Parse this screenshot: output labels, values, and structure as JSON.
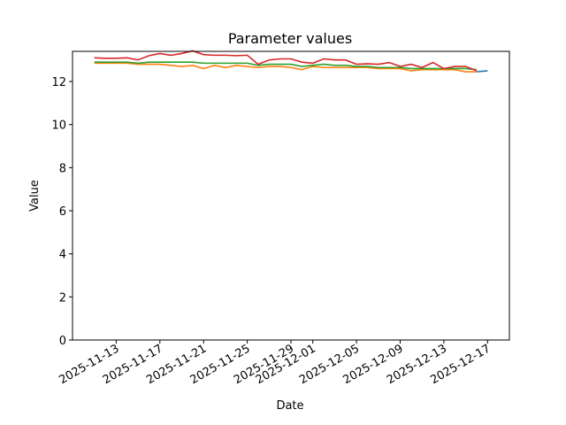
{
  "chart_data": {
    "type": "line",
    "title": "Parameter values",
    "x_label": "Date",
    "y_label": "Value",
    "x": [
      "2025-11-11",
      "2025-11-12",
      "2025-11-13",
      "2025-11-14",
      "2025-11-15",
      "2025-11-16",
      "2025-11-17",
      "2025-11-18",
      "2025-11-19",
      "2025-11-20",
      "2025-11-21",
      "2025-11-22",
      "2025-11-23",
      "2025-11-24",
      "2025-11-25",
      "2025-11-26",
      "2025-11-27",
      "2025-11-28",
      "2025-11-29",
      "2025-11-30",
      "2025-12-01",
      "2025-12-02",
      "2025-12-03",
      "2025-12-04",
      "2025-12-05",
      "2025-12-06",
      "2025-12-07",
      "2025-12-08",
      "2025-12-09",
      "2025-12-10",
      "2025-12-11",
      "2025-12-12",
      "2025-12-13",
      "2025-12-14",
      "2025-12-15",
      "2025-12-16",
      "2025-12-17"
    ],
    "series": [
      {
        "color": "#1f77b4",
        "values": [
          null,
          null,
          null,
          null,
          null,
          null,
          null,
          null,
          null,
          null,
          null,
          null,
          null,
          null,
          null,
          null,
          null,
          null,
          null,
          null,
          null,
          null,
          null,
          null,
          null,
          null,
          null,
          null,
          null,
          null,
          null,
          null,
          null,
          null,
          null,
          12.45,
          12.5
        ]
      },
      {
        "color": "#ff7f0e",
        "values": [
          12.85,
          12.85,
          12.85,
          12.85,
          12.8,
          12.8,
          12.8,
          12.75,
          12.7,
          12.75,
          12.6,
          12.75,
          12.65,
          12.75,
          12.7,
          12.65,
          12.7,
          12.7,
          12.65,
          12.55,
          12.7,
          12.65,
          12.65,
          12.65,
          12.65,
          12.65,
          12.6,
          12.6,
          12.6,
          12.5,
          12.55,
          12.55,
          12.55,
          12.55,
          12.45,
          12.45,
          null
        ]
      },
      {
        "color": "#2ca02c",
        "values": [
          12.9,
          12.9,
          12.9,
          12.9,
          12.85,
          12.9,
          12.9,
          12.9,
          12.9,
          12.9,
          12.85,
          12.85,
          12.85,
          12.85,
          12.85,
          12.75,
          12.8,
          12.8,
          12.8,
          12.7,
          12.75,
          12.8,
          12.75,
          12.75,
          12.7,
          12.7,
          12.65,
          12.65,
          12.65,
          12.6,
          12.6,
          12.6,
          12.6,
          12.6,
          12.6,
          12.55,
          null
        ]
      },
      {
        "color": "#d62728",
        "values": [
          13.1,
          13.08,
          13.08,
          13.1,
          13.0,
          13.2,
          13.3,
          13.22,
          13.3,
          13.42,
          13.25,
          13.22,
          13.22,
          13.2,
          13.22,
          12.8,
          13.0,
          13.05,
          13.05,
          12.9,
          12.85,
          13.05,
          13.0,
          13.0,
          12.8,
          12.82,
          12.8,
          12.88,
          12.7,
          12.8,
          12.65,
          12.88,
          12.6,
          12.7,
          12.7,
          12.5,
          null
        ]
      }
    ],
    "xlim": [
      "2025-11-09",
      "2025-12-19"
    ],
    "xticks": [
      "2025-11-13",
      "2025-11-17",
      "2025-11-21",
      "2025-11-25",
      "2025-11-29",
      "2025-12-01",
      "2025-12-05",
      "2025-12-09",
      "2025-12-13",
      "2025-12-17"
    ],
    "ylim": [
      0,
      13.4
    ],
    "yticks": [
      0,
      2,
      4,
      6,
      8,
      10,
      12
    ]
  }
}
